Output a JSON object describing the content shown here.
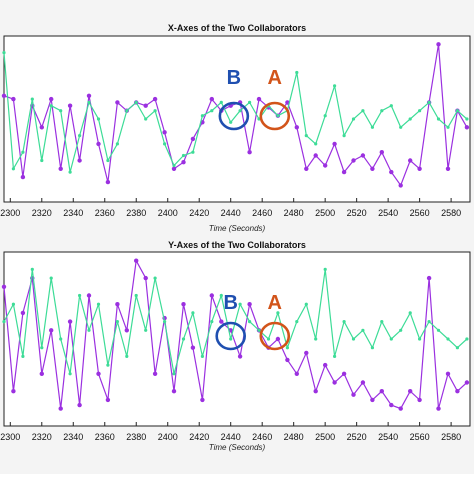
{
  "chart_data": [
    {
      "type": "line",
      "title": "X-Axes of the Two Collaborators",
      "xlabel": "Time (Seconds)",
      "ylabel": "",
      "xlim": [
        2296,
        2592
      ],
      "ylim": [
        0,
        1
      ],
      "grid": false,
      "x_ticks": [
        2300,
        2320,
        2340,
        2360,
        2380,
        2400,
        2420,
        2440,
        2460,
        2480,
        2500,
        2520,
        2540,
        2560,
        2580
      ],
      "x_tick_labels": [
        "2300",
        "2320",
        "2340",
        "2360",
        "2380",
        "2400",
        "2420",
        "2440",
        "2460",
        "2480",
        "2500",
        "2520",
        "2540",
        "2560",
        "2580"
      ],
      "series": [
        {
          "color": "#9b30e0",
          "x": [
            2296,
            2302,
            2308,
            2314,
            2320,
            2326,
            2332,
            2338,
            2344,
            2350,
            2356,
            2362,
            2368,
            2374,
            2380,
            2386,
            2392,
            2398,
            2404,
            2410,
            2416,
            2422,
            2428,
            2434,
            2440,
            2446,
            2452,
            2458,
            2464,
            2470,
            2476,
            2482,
            2488,
            2494,
            2500,
            2506,
            2512,
            2518,
            2524,
            2530,
            2536,
            2542,
            2548,
            2554,
            2560,
            2566,
            2572,
            2578,
            2584,
            2590
          ],
          "values": [
            0.64,
            0.62,
            0.15,
            0.58,
            0.45,
            0.62,
            0.2,
            0.58,
            0.25,
            0.64,
            0.35,
            0.12,
            0.6,
            0.55,
            0.6,
            0.58,
            0.62,
            0.42,
            0.2,
            0.24,
            0.38,
            0.48,
            0.62,
            0.55,
            0.58,
            0.6,
            0.3,
            0.62,
            0.57,
            0.52,
            0.6,
            0.45,
            0.2,
            0.28,
            0.22,
            0.35,
            0.18,
            0.25,
            0.28,
            0.2,
            0.3,
            0.18,
            0.1,
            0.25,
            0.2,
            0.6,
            0.95,
            0.2,
            0.55,
            0.45
          ]
        },
        {
          "color": "#3ddc97",
          "x": [
            2296,
            2302,
            2308,
            2314,
            2320,
            2326,
            2332,
            2338,
            2344,
            2350,
            2356,
            2362,
            2368,
            2374,
            2380,
            2386,
            2392,
            2398,
            2404,
            2410,
            2416,
            2422,
            2428,
            2434,
            2440,
            2446,
            2452,
            2458,
            2464,
            2470,
            2476,
            2482,
            2488,
            2494,
            2500,
            2506,
            2512,
            2518,
            2524,
            2530,
            2536,
            2542,
            2548,
            2554,
            2560,
            2566,
            2572,
            2578,
            2584,
            2590
          ],
          "values": [
            0.9,
            0.2,
            0.3,
            0.62,
            0.25,
            0.58,
            0.55,
            0.18,
            0.4,
            0.6,
            0.5,
            0.25,
            0.35,
            0.55,
            0.6,
            0.5,
            0.55,
            0.35,
            0.22,
            0.28,
            0.3,
            0.52,
            0.55,
            0.6,
            0.48,
            0.55,
            0.6,
            0.5,
            0.58,
            0.52,
            0.55,
            0.78,
            0.4,
            0.35,
            0.52,
            0.7,
            0.4,
            0.5,
            0.55,
            0.45,
            0.55,
            0.58,
            0.45,
            0.5,
            0.55,
            0.6,
            0.5,
            0.45,
            0.55,
            0.5
          ]
        }
      ],
      "annotations": [
        {
          "text": "B",
          "x": 2442,
          "color": "#1f4fb0"
        },
        {
          "text": "A",
          "x": 2468,
          "color": "#d2541a"
        }
      ]
    },
    {
      "type": "line",
      "title": "Y-Axes of the Two Collaborators",
      "xlabel": "Time (Seconds)",
      "ylabel": "",
      "xlim": [
        2296,
        2592
      ],
      "ylim": [
        0,
        1
      ],
      "grid": false,
      "x_ticks": [
        2300,
        2320,
        2340,
        2360,
        2380,
        2400,
        2420,
        2440,
        2460,
        2480,
        2500,
        2520,
        2540,
        2560,
        2580
      ],
      "x_tick_labels": [
        "2300",
        "2320",
        "2340",
        "2360",
        "2380",
        "2400",
        "2420",
        "2440",
        "2460",
        "2480",
        "2500",
        "2520",
        "2540",
        "2560",
        "2580"
      ],
      "series": [
        {
          "color": "#9b30e0",
          "x": [
            2296,
            2302,
            2308,
            2314,
            2320,
            2326,
            2332,
            2338,
            2344,
            2350,
            2356,
            2362,
            2368,
            2374,
            2380,
            2386,
            2392,
            2398,
            2404,
            2410,
            2416,
            2422,
            2428,
            2434,
            2440,
            2446,
            2452,
            2458,
            2464,
            2470,
            2476,
            2482,
            2488,
            2494,
            2500,
            2506,
            2512,
            2518,
            2524,
            2530,
            2536,
            2542,
            2548,
            2554,
            2560,
            2566,
            2572,
            2578,
            2584,
            2590
          ],
          "values": [
            0.8,
            0.2,
            0.65,
            0.85,
            0.3,
            0.55,
            0.1,
            0.6,
            0.12,
            0.75,
            0.3,
            0.15,
            0.7,
            0.55,
            0.95,
            0.85,
            0.3,
            0.62,
            0.2,
            0.7,
            0.45,
            0.15,
            0.75,
            0.6,
            0.55,
            0.4,
            0.7,
            0.55,
            0.45,
            0.5,
            0.38,
            0.3,
            0.42,
            0.2,
            0.35,
            0.25,
            0.3,
            0.18,
            0.25,
            0.15,
            0.2,
            0.12,
            0.1,
            0.2,
            0.15,
            0.85,
            0.1,
            0.3,
            0.2,
            0.25
          ]
        },
        {
          "color": "#3ddc97",
          "x": [
            2296,
            2302,
            2308,
            2314,
            2320,
            2326,
            2332,
            2338,
            2344,
            2350,
            2356,
            2362,
            2368,
            2374,
            2380,
            2386,
            2392,
            2398,
            2404,
            2410,
            2416,
            2422,
            2428,
            2434,
            2440,
            2446,
            2452,
            2458,
            2464,
            2470,
            2476,
            2482,
            2488,
            2494,
            2500,
            2506,
            2512,
            2518,
            2524,
            2530,
            2536,
            2542,
            2548,
            2554,
            2560,
            2566,
            2572,
            2578,
            2584,
            2590
          ],
          "values": [
            0.6,
            0.7,
            0.4,
            0.9,
            0.45,
            0.85,
            0.5,
            0.3,
            0.75,
            0.55,
            0.7,
            0.35,
            0.6,
            0.4,
            0.75,
            0.55,
            0.85,
            0.6,
            0.3,
            0.5,
            0.65,
            0.4,
            0.6,
            0.75,
            0.5,
            0.7,
            0.6,
            0.55,
            0.5,
            0.65,
            0.45,
            0.6,
            0.7,
            0.5,
            0.9,
            0.4,
            0.6,
            0.5,
            0.55,
            0.45,
            0.6,
            0.5,
            0.55,
            0.65,
            0.5,
            0.6,
            0.55,
            0.5,
            0.45,
            0.5
          ]
        }
      ],
      "annotations": [
        {
          "text": "B",
          "x": 2440,
          "color": "#1f4fb0"
        },
        {
          "text": "A",
          "x": 2468,
          "color": "#d2541a"
        }
      ]
    }
  ]
}
